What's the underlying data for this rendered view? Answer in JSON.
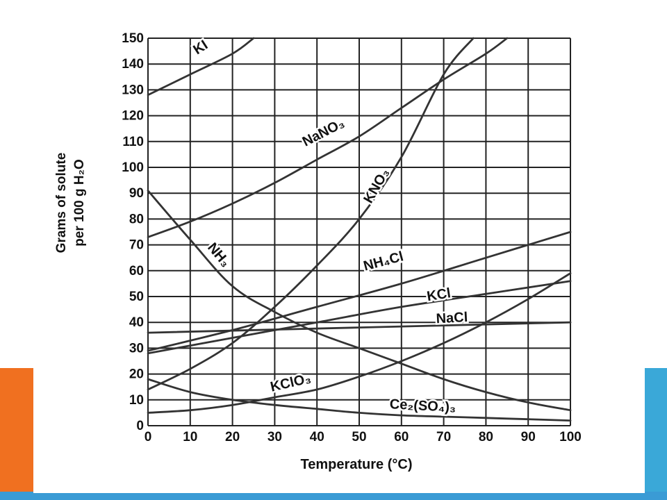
{
  "theme": {
    "accent_orange": "#f07020",
    "accent_blue": "#3aa8d8",
    "bottom_band": "#3a9bd5",
    "grid_color": "#222222",
    "curve_color": "#333333"
  },
  "chart_data": {
    "type": "line",
    "title": "",
    "xlabel": "Temperature (°C)",
    "ylabel_line1": "Grams of solute",
    "ylabel_line2": "per 100 g H₂O",
    "xlim": [
      0,
      100
    ],
    "ylim": [
      0,
      150
    ],
    "xticks": [
      0,
      10,
      20,
      30,
      40,
      50,
      60,
      70,
      80,
      90,
      100
    ],
    "yticks": [
      0,
      10,
      20,
      30,
      40,
      50,
      60,
      70,
      80,
      90,
      100,
      110,
      120,
      130,
      140,
      150
    ],
    "grid": true,
    "series": [
      {
        "name": "KI",
        "x": [
          0,
          10,
          20,
          25
        ],
        "y": [
          128,
          136,
          144,
          150
        ]
      },
      {
        "name": "NaNO₃",
        "x": [
          0,
          10,
          20,
          30,
          40,
          50,
          60,
          70,
          80,
          85
        ],
        "y": [
          73,
          79,
          86,
          94,
          103,
          112,
          123,
          134,
          144,
          150
        ]
      },
      {
        "name": "KNO₃",
        "x": [
          0,
          10,
          20,
          30,
          40,
          50,
          60,
          70,
          77
        ],
        "y": [
          14,
          22,
          32,
          46,
          62,
          80,
          104,
          136,
          150
        ]
      },
      {
        "name": "NH₃",
        "x": [
          0,
          10,
          20,
          30,
          40,
          50,
          60,
          70,
          80,
          90,
          100
        ],
        "y": [
          91,
          72,
          54,
          44,
          36,
          30,
          24,
          18,
          13,
          9,
          6
        ]
      },
      {
        "name": "NH₄Cl",
        "x": [
          0,
          20,
          40,
          60,
          80,
          100
        ],
        "y": [
          29,
          37,
          46,
          55,
          65,
          75
        ]
      },
      {
        "name": "KCl",
        "x": [
          0,
          20,
          40,
          60,
          80,
          100
        ],
        "y": [
          28,
          34,
          40,
          46,
          51,
          56
        ]
      },
      {
        "name": "NaCl",
        "x": [
          0,
          50,
          100
        ],
        "y": [
          36,
          38,
          40
        ]
      },
      {
        "name": "KClO₃",
        "x": [
          0,
          10,
          20,
          30,
          40,
          50,
          60,
          70,
          80,
          90,
          100
        ],
        "y": [
          5,
          6,
          8,
          11,
          14,
          19,
          25,
          32,
          40,
          49,
          59
        ]
      },
      {
        "name": "Ce₂(SO₄)₃",
        "x": [
          0,
          10,
          20,
          30,
          40,
          50,
          60,
          70,
          80,
          90,
          100
        ],
        "y": [
          18,
          13,
          10,
          8,
          6.5,
          5,
          4,
          3.5,
          3,
          2.5,
          2
        ]
      }
    ]
  }
}
